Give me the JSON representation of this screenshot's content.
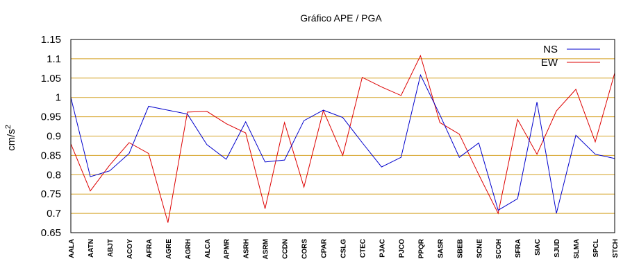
{
  "chart_data": {
    "type": "line",
    "title": "Gráfico  APE / PGA",
    "ylabel": "cm/s",
    "ylabel_superscript": "2",
    "xlabel": "",
    "ylim": [
      0.65,
      1.15
    ],
    "yticks": [
      "0.65",
      "0.7",
      "0.75",
      "0.8",
      "0.85",
      "0.9",
      "0.95",
      "1",
      "1.05",
      "1.1",
      "1.15"
    ],
    "grid": true,
    "legend_position": "top-right",
    "categories": [
      "AALA",
      "AATN",
      "ABJT",
      "ACOY",
      "AFRA",
      "AGRE",
      "AGRH",
      "ALCA",
      "APMR",
      "ASRH",
      "ASRM",
      "CCDN",
      "CORS",
      "CPAR",
      "CSLG",
      "CTEC",
      "PJAC",
      "PJCO",
      "PPQR",
      "SASR",
      "SBEB",
      "SCNE",
      "SCOH",
      "SFRA",
      "SIAC",
      "SJUD",
      "SLMA",
      "SPCL",
      "STCH"
    ],
    "series": [
      {
        "name": "NS",
        "color": "#0000cc",
        "values": [
          1.0,
          0.795,
          0.81,
          0.855,
          0.977,
          0.967,
          0.957,
          0.878,
          0.84,
          0.937,
          0.833,
          0.838,
          0.94,
          0.967,
          0.948,
          0.883,
          0.82,
          0.845,
          1.058,
          0.955,
          0.845,
          0.882,
          0.708,
          0.738,
          0.988,
          0.7,
          0.902,
          0.853,
          0.842
        ]
      },
      {
        "name": "EW",
        "color": "#dd0000",
        "values": [
          0.88,
          0.758,
          0.825,
          0.883,
          0.855,
          0.676,
          0.962,
          0.964,
          0.932,
          0.908,
          0.712,
          0.935,
          0.768,
          0.966,
          0.85,
          1.052,
          1.027,
          1.005,
          1.108,
          0.935,
          0.905,
          0.8,
          0.7,
          0.943,
          0.853,
          0.965,
          1.021,
          0.885,
          1.063
        ]
      }
    ]
  }
}
